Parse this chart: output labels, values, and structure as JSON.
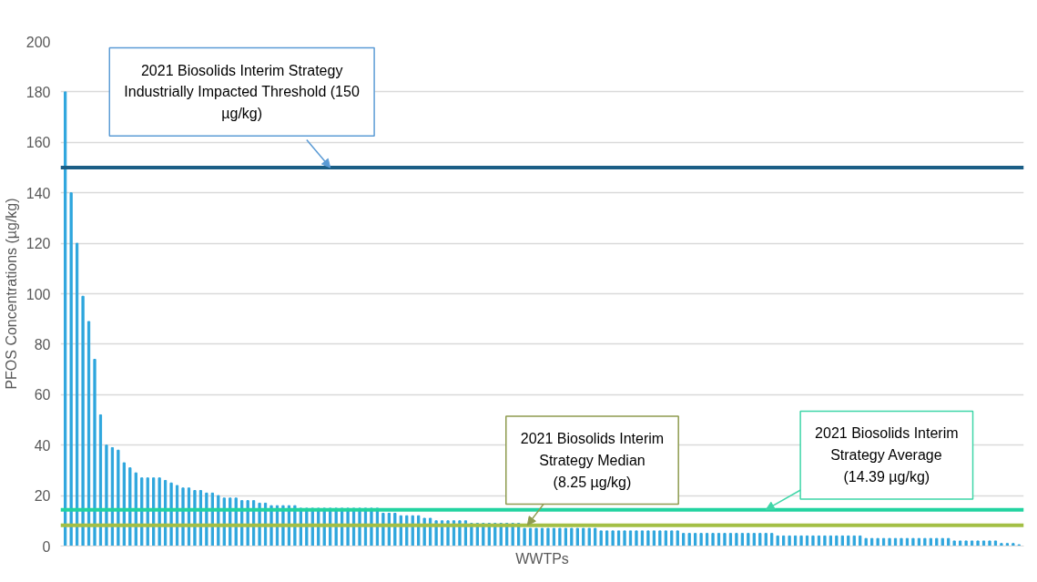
{
  "chart_data": {
    "type": "bar",
    "xlabel": "WWTPs",
    "ylabel": "PFOS Concentrations (µg/kg)",
    "categories": [
      null,
      null,
      null,
      null,
      null,
      null,
      null,
      null,
      null,
      null,
      null,
      null,
      null,
      null,
      null,
      null,
      null,
      null,
      null,
      null,
      null,
      null,
      null,
      null,
      null,
      null,
      null,
      null,
      null,
      null,
      null,
      null,
      null,
      null,
      null,
      null,
      null,
      null,
      null,
      null,
      null,
      null,
      null,
      null,
      null,
      null,
      null,
      null,
      null,
      null,
      null,
      null,
      null,
      null,
      null,
      null,
      null,
      null,
      null,
      null,
      null,
      null,
      null,
      null,
      null,
      null,
      null,
      null,
      null,
      null,
      null,
      null,
      null,
      null,
      null,
      null,
      null,
      null,
      null,
      null,
      null,
      null,
      null,
      null,
      null,
      null,
      null,
      null,
      null,
      null,
      null,
      null,
      null,
      null,
      null,
      null,
      null,
      null,
      null,
      null,
      null,
      null,
      null,
      null,
      null,
      null,
      null,
      null,
      null,
      null,
      null,
      null,
      null,
      null,
      null,
      null,
      null,
      null,
      null,
      null,
      null,
      null,
      null,
      null,
      null,
      null,
      null,
      null,
      null,
      null,
      null,
      null,
      null,
      null,
      null,
      null,
      null,
      null,
      null,
      null,
      null,
      null,
      null,
      null,
      null,
      null,
      null,
      null,
      null,
      null,
      null,
      null,
      null,
      null,
      null,
      null,
      null,
      null,
      null,
      null,
      null,
      null,
      null
    ],
    "values": [
      180,
      140,
      120,
      99,
      89,
      74,
      52,
      40,
      39,
      38,
      33,
      31,
      29,
      27,
      27,
      27,
      27,
      26,
      25,
      24,
      23,
      23,
      22,
      22,
      21,
      21,
      20,
      19,
      19,
      19,
      18,
      18,
      18,
      17,
      17,
      16,
      16,
      16,
      16,
      16,
      15,
      15,
      15,
      15,
      15,
      15,
      15,
      15,
      15,
      15,
      15,
      15,
      15,
      15,
      13,
      13,
      13,
      12,
      12,
      12,
      12,
      11,
      11,
      10,
      10,
      10,
      10,
      10,
      10,
      9,
      9,
      9,
      9,
      9,
      9,
      9,
      9,
      9,
      7,
      7,
      7,
      7,
      7,
      7,
      7,
      7,
      7,
      7,
      7,
      7,
      7,
      6,
      6,
      6,
      6,
      6,
      6,
      6,
      6,
      6,
      6,
      6,
      6,
      6,
      6,
      5,
      5,
      5,
      5,
      5,
      5,
      5,
      5,
      5,
      5,
      5,
      5,
      5,
      5,
      5,
      5,
      4,
      4,
      4,
      4,
      4,
      4,
      4,
      4,
      4,
      4,
      4,
      4,
      4,
      4,
      4,
      3,
      3,
      3,
      3,
      3,
      3,
      3,
      3,
      3,
      3,
      3,
      3,
      3,
      3,
      3,
      2,
      2,
      2,
      2,
      2,
      2,
      2,
      2,
      1,
      1,
      1,
      0.5
    ],
    "color": "#2ea6dd",
    "ylim": [
      0,
      200
    ],
    "yticks": [
      0,
      20,
      40,
      60,
      80,
      100,
      120,
      140,
      160,
      180,
      200
    ],
    "grid": "y",
    "tick_labels": "y",
    "ref_lines": [
      {
        "axis": "y",
        "value": 150,
        "label": "2021 Biosolids Interim Strategy\nIndustrially Impacted Threshold (150\nµg/kg)",
        "color": "#1b5e86"
      },
      {
        "axis": "y",
        "value": 14.39,
        "label": "2021 Biosolids Interim\nStrategy Average\n(14.39 µg/kg)",
        "color": "#22d3a0"
      },
      {
        "axis": "y",
        "value": 8.25,
        "label": "2021 Biosolids Interim\nStrategy Median\n(8.25 µg/kg)",
        "color": "#a3bf45"
      }
    ]
  }
}
